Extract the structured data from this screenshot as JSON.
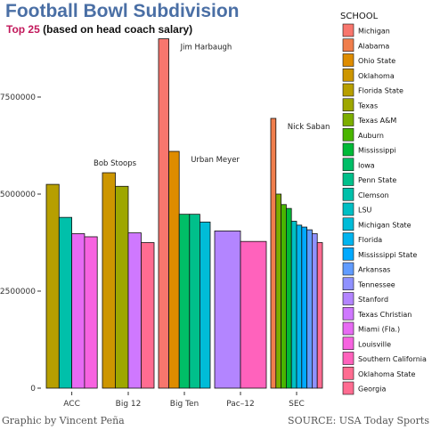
{
  "title_text": "Football Bowl Subdivision",
  "subtitle_highlight": "Top 25",
  "subtitle_rest": " (based on head coach salary)",
  "credit_left": "Graphic by Vincent Peña",
  "credit_right": "SOURCE: USA Today Sports",
  "chart_data": {
    "type": "bar",
    "title": "Football Bowl Subdivision",
    "subtitle": "Top 25 (based on head coach salary)",
    "xlabel": "",
    "ylabel": "",
    "ylim": [
      0,
      9200000
    ],
    "yticks": [
      0,
      2500000,
      5000000,
      7500000
    ],
    "ytick_labels": [
      "0",
      "2500000",
      "5000000",
      "7500000"
    ],
    "grid": false,
    "legend_title": "SCHOOL",
    "legend_position": "right",
    "categories": [
      "ACC",
      "Big 12",
      "Big Ten",
      "Pac–12",
      "SEC"
    ],
    "schools": [
      {
        "name": "Michigan",
        "color": "#F8766D"
      },
      {
        "name": "Alabama",
        "color": "#F07E4C"
      },
      {
        "name": "Ohio State",
        "color": "#DE8C00"
      },
      {
        "name": "Oklahoma",
        "color": "#CD9600"
      },
      {
        "name": "Florida State",
        "color": "#B79F00"
      },
      {
        "name": "Texas",
        "color": "#9EA700"
      },
      {
        "name": "Texas A&M",
        "color": "#7CAE00"
      },
      {
        "name": "Auburn",
        "color": "#49B500"
      },
      {
        "name": "Mississippi",
        "color": "#00BA38"
      },
      {
        "name": "Iowa",
        "color": "#00BE67"
      },
      {
        "name": "Penn State",
        "color": "#00C08B"
      },
      {
        "name": "Clemson",
        "color": "#00C0AA"
      },
      {
        "name": "LSU",
        "color": "#00BFC4"
      },
      {
        "name": "Michigan State",
        "color": "#00BCD8"
      },
      {
        "name": "Florida",
        "color": "#00B4EF"
      },
      {
        "name": "Mississippi State",
        "color": "#00A9FF"
      },
      {
        "name": "Arkansas",
        "color": "#619CFF"
      },
      {
        "name": "Tennessee",
        "color": "#8F91FF"
      },
      {
        "name": "Stanford",
        "color": "#B385FF"
      },
      {
        "name": "Texas Christian",
        "color": "#CF78FF"
      },
      {
        "name": "Miami (Fla.)",
        "color": "#E76BF3"
      },
      {
        "name": "Louisville",
        "color": "#F763E0"
      },
      {
        "name": "Southern California",
        "color": "#FF62BC"
      },
      {
        "name": "Oklahoma State",
        "color": "#FF6C91"
      },
      {
        "name": "Georgia",
        "color": "#FF6C91"
      }
    ],
    "groups": [
      {
        "conference": "ACC",
        "bars": [
          {
            "school": "Florida State",
            "value": 5250000
          },
          {
            "school": "Clemson",
            "value": 4400000
          },
          {
            "school": "Miami (Fla.)",
            "value": 3980000
          },
          {
            "school": "Louisville",
            "value": 3900000
          }
        ]
      },
      {
        "conference": "Big 12",
        "bars": [
          {
            "school": "Oklahoma",
            "value": 5550000
          },
          {
            "school": "Texas",
            "value": 5200000
          },
          {
            "school": "Texas Christian",
            "value": 4000000
          },
          {
            "school": "Oklahoma State",
            "value": 3750000
          }
        ]
      },
      {
        "conference": "Big Ten",
        "bars": [
          {
            "school": "Michigan",
            "value": 9000000
          },
          {
            "school": "Ohio State",
            "value": 6100000
          },
          {
            "school": "Iowa",
            "value": 4480000
          },
          {
            "school": "Penn State",
            "value": 4480000
          },
          {
            "school": "Michigan State",
            "value": 4280000
          }
        ]
      },
      {
        "conference": "Pac–12",
        "bars": [
          {
            "school": "Stanford",
            "value": 4050000
          },
          {
            "school": "Southern California",
            "value": 3780000
          }
        ]
      },
      {
        "conference": "SEC",
        "bars": [
          {
            "school": "Alabama",
            "value": 6950000
          },
          {
            "school": "Texas A&M",
            "value": 5000000
          },
          {
            "school": "Auburn",
            "value": 4730000
          },
          {
            "school": "Mississippi",
            "value": 4630000
          },
          {
            "school": "LSU",
            "value": 4300000
          },
          {
            "school": "Florida",
            "value": 4200000
          },
          {
            "school": "Mississippi State",
            "value": 4150000
          },
          {
            "school": "Arkansas",
            "value": 4080000
          },
          {
            "school": "Tennessee",
            "value": 3980000
          },
          {
            "school": "Georgia",
            "value": 3750000
          }
        ]
      }
    ],
    "annotations": [
      {
        "text": "Bob Stoops",
        "group": 1,
        "bar": 0
      },
      {
        "text": "Jim Harbaugh",
        "group": 2,
        "bar": 0
      },
      {
        "text": "Urban Meyer",
        "group": 2,
        "bar": 1
      },
      {
        "text": "Nick Saban",
        "group": 4,
        "bar": 0
      }
    ]
  }
}
